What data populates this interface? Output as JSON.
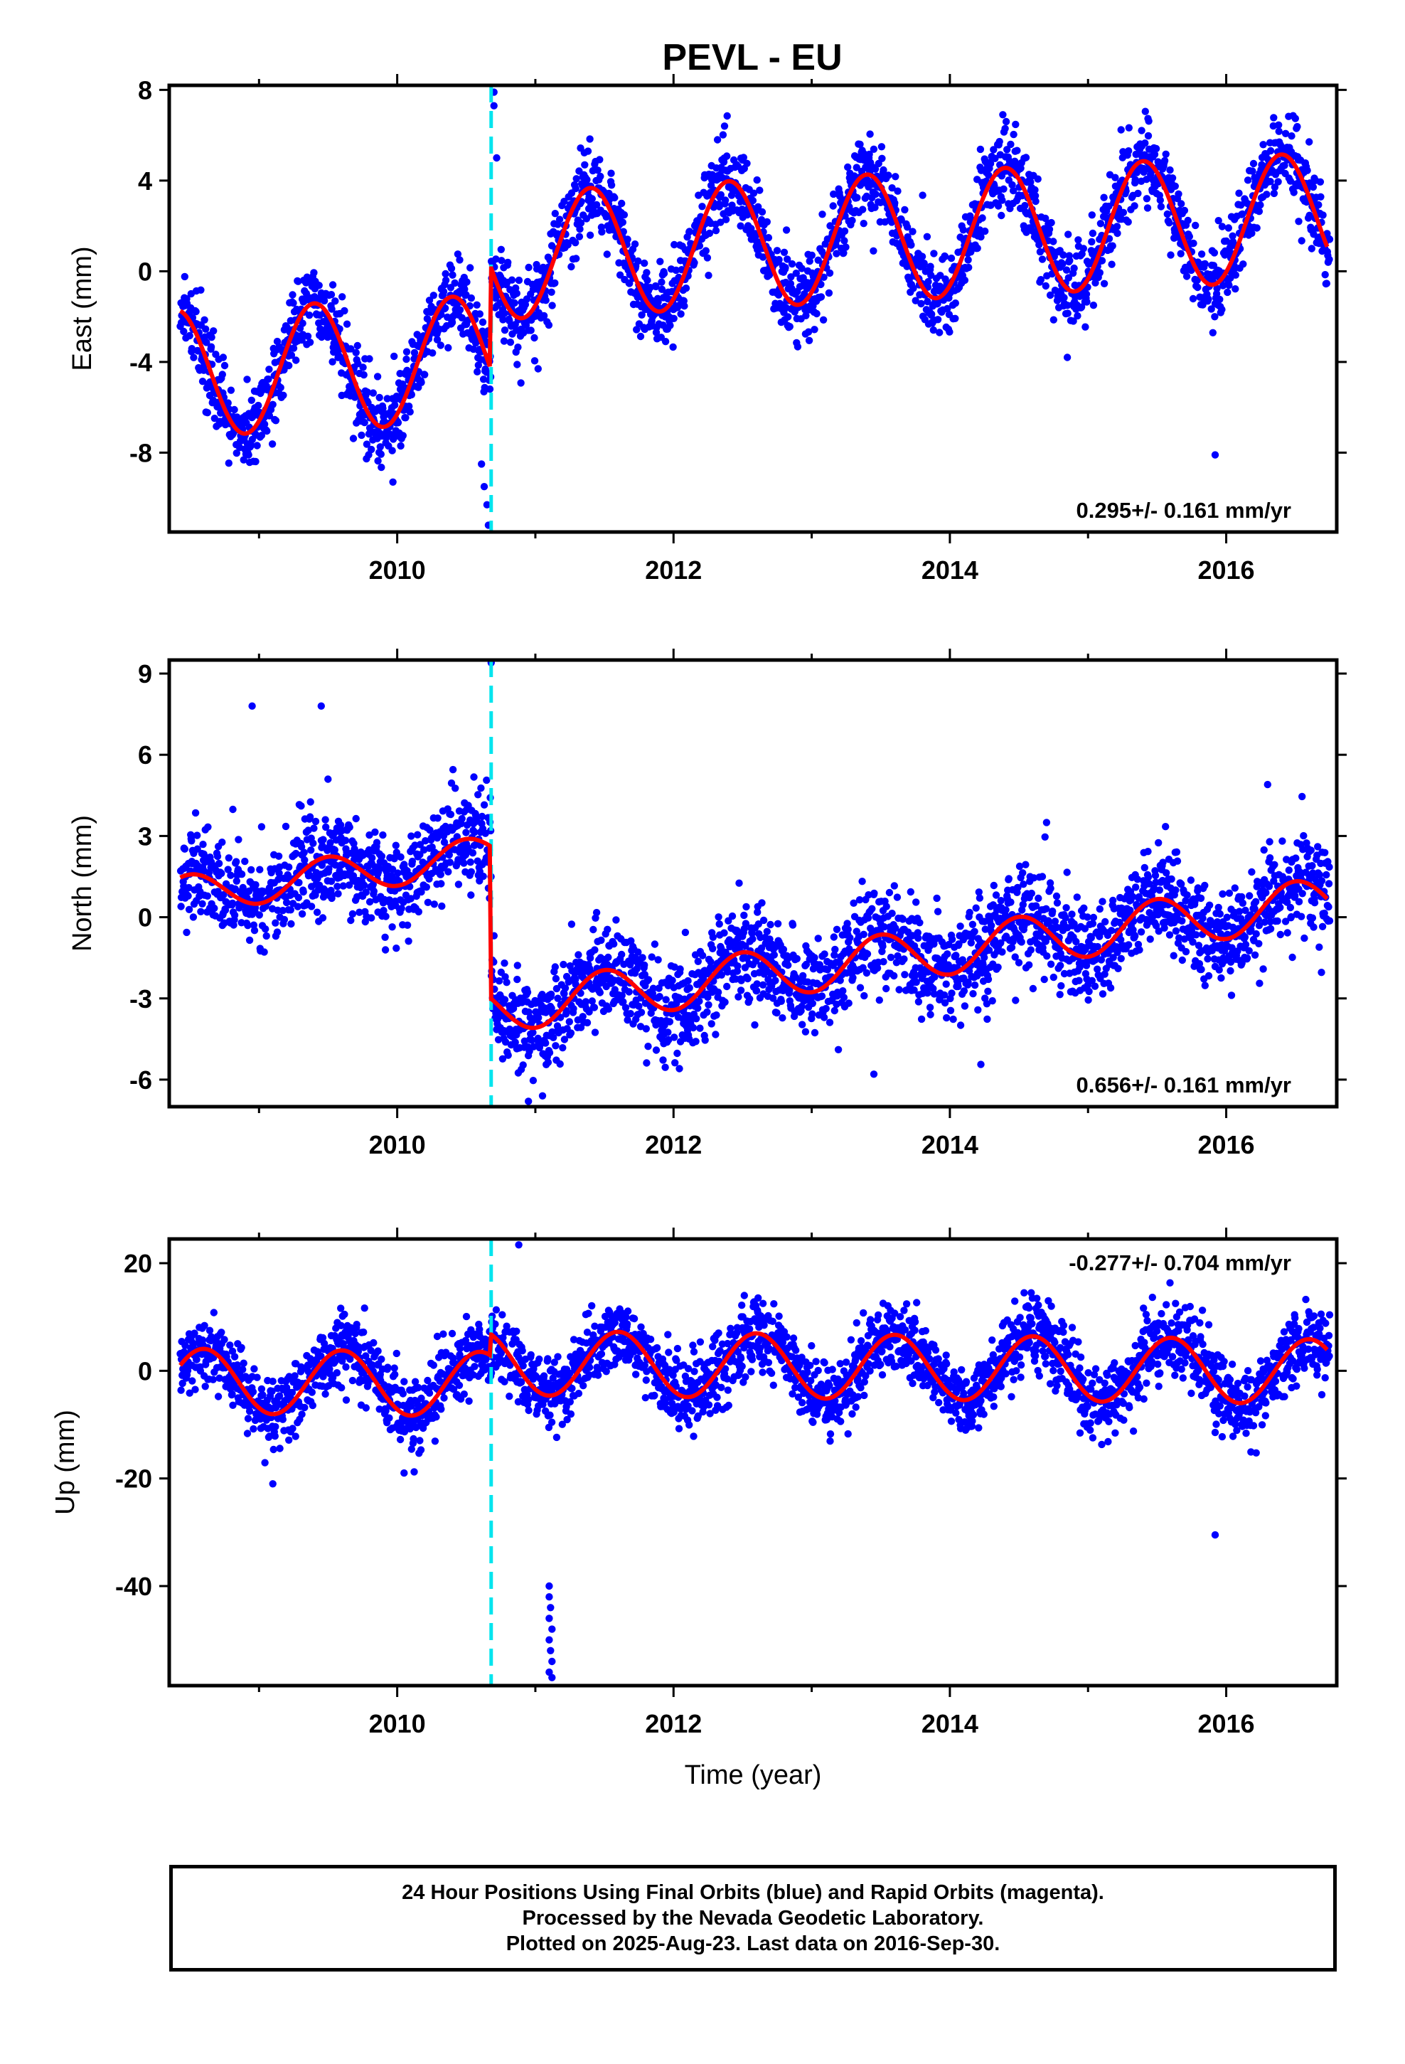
{
  "chart_data": [
    {
      "type": "scatter",
      "title": "PEVL - EU",
      "ylabel": "East (mm)",
      "xlabel": "",
      "xlim": [
        2008.35,
        2016.8
      ],
      "ylim": [
        -11.5,
        8.2
      ],
      "xticks": [
        2010,
        2012,
        2014,
        2016
      ],
      "yticks": [
        8,
        4,
        0,
        -4,
        -8
      ],
      "ytick_labels": [
        "8",
        "4",
        "0",
        "-4",
        "-8"
      ],
      "rate": "0.295+/- 0.161 mm/yr",
      "rate_position": "bottom-right",
      "offset_epoch": 2010.68,
      "grid": false,
      "series": [
        {
          "kind": "points",
          "color": "#0000ff",
          "model": {
            "seg1": {
              "mean": -3.3,
              "trend": 0.295,
              "amp": 2.8,
              "phase_peak": 0.4,
              "jump_at": 2010.68
            },
            "seg2": {
              "mean": 1.2,
              "trend": 0.295,
              "amp": 2.8,
              "phase_peak": 0.4
            }
          },
          "scatter_sd": 0.9
        },
        {
          "kind": "line",
          "color": "#ff0000"
        }
      ],
      "outliers": [
        {
          "x": 2010.7,
          "y": 7.9
        },
        {
          "x": 2010.7,
          "y": 7.3
        },
        {
          "x": 2010.72,
          "y": 5.0
        },
        {
          "x": 2010.61,
          "y": -8.5
        },
        {
          "x": 2010.63,
          "y": -9.5
        },
        {
          "x": 2010.65,
          "y": -10.3
        },
        {
          "x": 2010.66,
          "y": -11.2
        },
        {
          "x": 2015.92,
          "y": -8.1
        },
        {
          "x": 2014.85,
          "y": -3.8
        },
        {
          "x": 2011.02,
          "y": -4.3
        }
      ]
    },
    {
      "type": "scatter",
      "title": "",
      "ylabel": "North (mm)",
      "xlabel": "",
      "xlim": [
        2008.35,
        2016.8
      ],
      "ylim": [
        -7.0,
        9.5
      ],
      "xticks": [
        2010,
        2012,
        2014,
        2016
      ],
      "yticks": [
        9,
        6,
        3,
        0,
        -3,
        -6
      ],
      "ytick_labels": [
        "9",
        "6",
        "3",
        "0",
        "-3",
        "-6"
      ],
      "rate": "0.656+/- 0.161 mm/yr",
      "rate_position": "bottom-right",
      "offset_epoch": 2010.68,
      "grid": false,
      "series": [
        {
          "kind": "points",
          "color": "#0000ff",
          "model": {
            "seg1": {
              "mean": 3.5,
              "trend": 0.656,
              "amp": 0.7,
              "phase_peak": 0.5
            },
            "seg2": {
              "mean": -2.2,
              "trend": 0.656,
              "amp": 0.9,
              "phase_peak": 0.5
            }
          },
          "scatter_sd": 0.9
        },
        {
          "kind": "line",
          "color": "#ff0000"
        }
      ],
      "outliers": [
        {
          "x": 2010.68,
          "y": 9.4
        },
        {
          "x": 2008.95,
          "y": 7.8
        },
        {
          "x": 2009.45,
          "y": 7.8
        },
        {
          "x": 2010.95,
          "y": -6.8
        },
        {
          "x": 2013.45,
          "y": -5.8
        },
        {
          "x": 2014.7,
          "y": 3.5
        },
        {
          "x": 2016.3,
          "y": 4.9
        },
        {
          "x": 2009.38,
          "y": 0.4
        }
      ]
    },
    {
      "type": "scatter",
      "title": "",
      "ylabel": "Up (mm)",
      "xlabel": "Time (year)",
      "xlim": [
        2008.35,
        2016.8
      ],
      "ylim": [
        -58.5,
        24.5
      ],
      "xticks": [
        2010,
        2012,
        2014,
        2016
      ],
      "yticks": [
        20,
        0,
        -20,
        -40
      ],
      "ytick_labels": [
        "20",
        "0",
        "-20",
        "-40"
      ],
      "rate": "-0.277+/- 0.704 mm/yr",
      "rate_position": "top-right",
      "offset_epoch": 2010.68,
      "grid": false,
      "series": [
        {
          "kind": "points",
          "color": "#0000ff",
          "model": {
            "seg1": {
              "mean": -3.0,
              "trend": -0.277,
              "amp": 6.0,
              "phase_peak": 0.6
            },
            "seg2": {
              "mean": 1.0,
              "trend": -0.277,
              "amp": 6.0,
              "phase_peak": 0.6
            }
          },
          "scatter_sd": 3.3
        },
        {
          "kind": "line",
          "color": "#ff0000"
        }
      ],
      "outliers": [
        {
          "x": 2010.88,
          "y": 23.4
        },
        {
          "x": 2011.1,
          "y": -40
        },
        {
          "x": 2011.1,
          "y": -42
        },
        {
          "x": 2011.11,
          "y": -44
        },
        {
          "x": 2011.1,
          "y": -46
        },
        {
          "x": 2011.12,
          "y": -48
        },
        {
          "x": 2011.1,
          "y": -50
        },
        {
          "x": 2011.11,
          "y": -52
        },
        {
          "x": 2011.12,
          "y": -54
        },
        {
          "x": 2011.1,
          "y": -56
        },
        {
          "x": 2011.12,
          "y": -57
        },
        {
          "x": 2015.92,
          "y": -30.5
        },
        {
          "x": 2009.1,
          "y": -21
        },
        {
          "x": 2010.05,
          "y": -19
        }
      ]
    }
  ],
  "footer": {
    "line1": "24 Hour Positions Using Final Orbits (blue) and Rapid Orbits (magenta).",
    "line2": "Processed by the Nevada Geodetic Laboratory.",
    "line3": "Plotted on 2025-Aug-23. Last data on 2016-Sep-30."
  },
  "colors": {
    "points": "#0000ff",
    "model": "#ff0000",
    "offset_line": "#00e5ee",
    "frame": "#000000"
  }
}
